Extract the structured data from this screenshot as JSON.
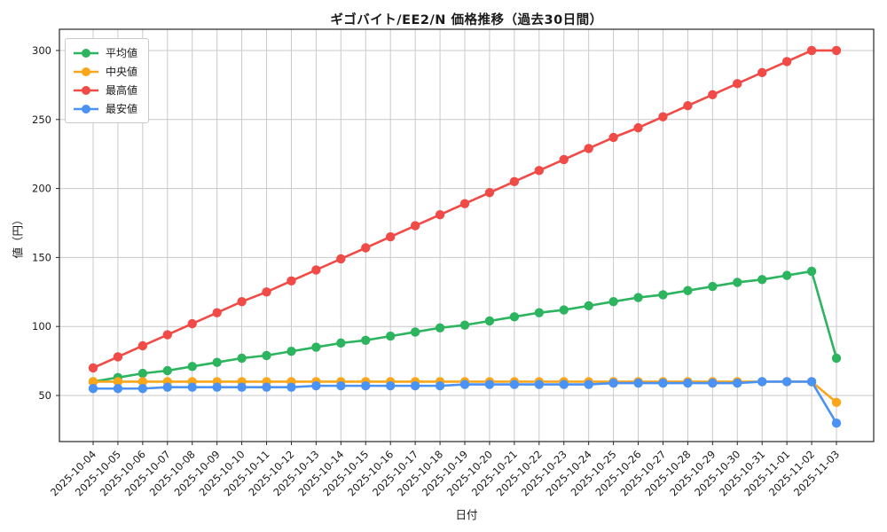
{
  "chart_data": {
    "type": "line",
    "title": "ギゴバイト/EE2/N 価格推移（過去30日間）",
    "xlabel": "日付",
    "ylabel": "値（円）",
    "x": [
      "2025-10-04",
      "2025-10-05",
      "2025-10-06",
      "2025-10-07",
      "2025-10-08",
      "2025-10-09",
      "2025-10-10",
      "2025-10-11",
      "2025-10-12",
      "2025-10-13",
      "2025-10-14",
      "2025-10-15",
      "2025-10-16",
      "2025-10-17",
      "2025-10-18",
      "2025-10-19",
      "2025-10-20",
      "2025-10-21",
      "2025-10-22",
      "2025-10-23",
      "2025-10-24",
      "2025-10-25",
      "2025-10-26",
      "2025-10-27",
      "2025-10-28",
      "2025-10-29",
      "2025-10-30",
      "2025-10-31",
      "2025-11-01",
      "2025-11-02",
      "2025-11-03"
    ],
    "series": [
      {
        "key": "mean",
        "name": "平均値",
        "color": "#2db45e",
        "values": [
          60,
          63,
          66,
          68,
          71,
          74,
          77,
          79,
          82,
          85,
          88,
          90,
          93,
          96,
          99,
          101,
          104,
          107,
          110,
          112,
          115,
          118,
          121,
          123,
          126,
          129,
          132,
          134,
          137,
          140,
          77
        ]
      },
      {
        "key": "median",
        "name": "中央値",
        "color": "#faa61b",
        "values": [
          60,
          60,
          60,
          60,
          60,
          60,
          60,
          60,
          60,
          60,
          60,
          60,
          60,
          60,
          60,
          60,
          60,
          60,
          60,
          60,
          60,
          60,
          60,
          60,
          60,
          60,
          60,
          60,
          60,
          60,
          45
        ]
      },
      {
        "key": "max",
        "name": "最高値",
        "color": "#f04b46",
        "values": [
          70,
          78,
          86,
          94,
          102,
          110,
          118,
          125,
          133,
          141,
          149,
          157,
          165,
          173,
          181,
          189,
          197,
          205,
          213,
          221,
          229,
          237,
          244,
          252,
          260,
          268,
          276,
          284,
          292,
          300,
          300
        ]
      },
      {
        "key": "min",
        "name": "最安値",
        "color": "#4b92f5",
        "values": [
          55,
          55,
          55,
          56,
          56,
          56,
          56,
          56,
          56,
          57,
          57,
          57,
          57,
          57,
          57,
          58,
          58,
          58,
          58,
          58,
          58,
          59,
          59,
          59,
          59,
          59,
          59,
          60,
          60,
          60,
          30
        ]
      }
    ],
    "yticks": [
      50,
      100,
      150,
      200,
      250,
      300
    ],
    "ylim": [
      16.6,
      315.4
    ],
    "grid": true,
    "legend_position": "upper-left",
    "colors": {
      "grid": "#c9c9c9",
      "spine": "#262626",
      "text": "#1a1a1a",
      "background": "#ffffff"
    }
  }
}
